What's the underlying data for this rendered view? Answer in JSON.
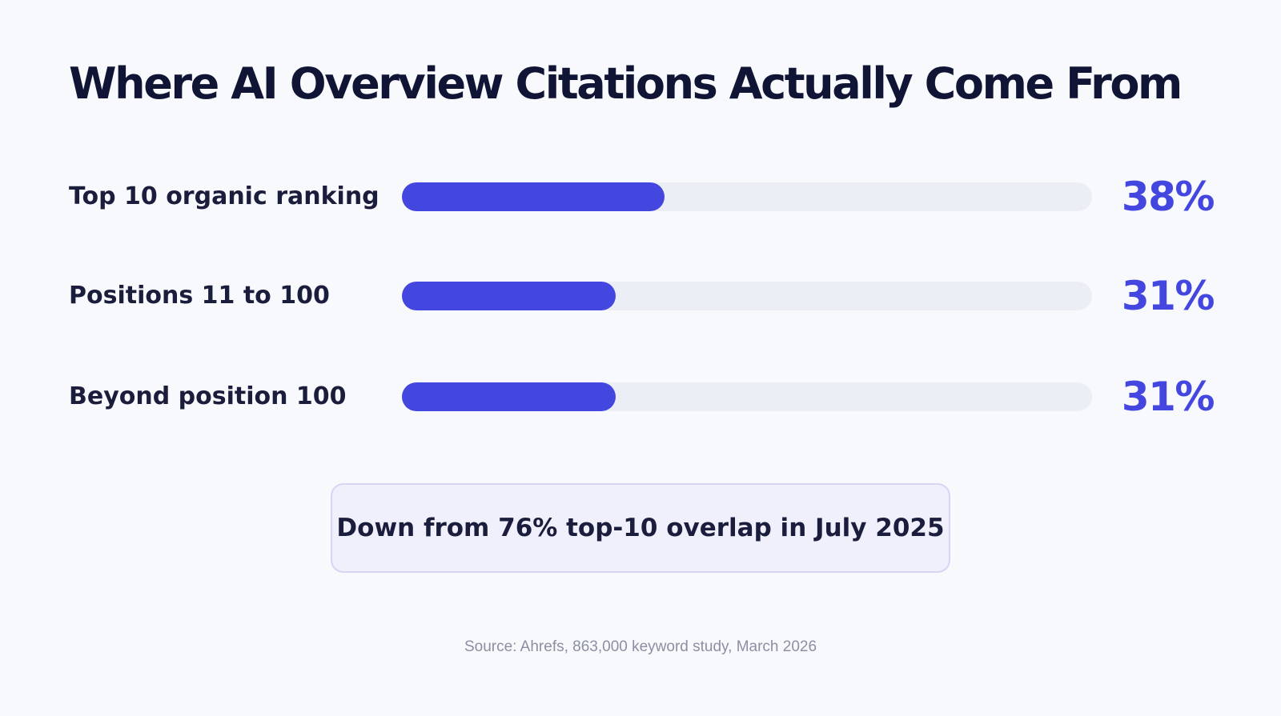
{
  "title": "Where AI Overview Citations Actually Come From",
  "chart_data": {
    "type": "bar",
    "orientation": "horizontal",
    "title": "Where AI Overview Citations Actually Come From",
    "categories": [
      "Top 10 organic ranking",
      "Positions 11 to 100",
      "Beyond position 100"
    ],
    "values": [
      38,
      31,
      31
    ],
    "value_labels": [
      "38%",
      "31%",
      "31%"
    ],
    "unit": "%",
    "xlim": [
      0,
      100
    ],
    "grid": false,
    "legend": "none",
    "colors": {
      "bar": "#4446e0",
      "track": "#eceef6",
      "value_text": "#4446e0"
    }
  },
  "callout": {
    "text": "Down from 76% top-10 overlap in July 2025"
  },
  "source": "Source: Ahrefs, 863,000 keyword study, March 2026"
}
